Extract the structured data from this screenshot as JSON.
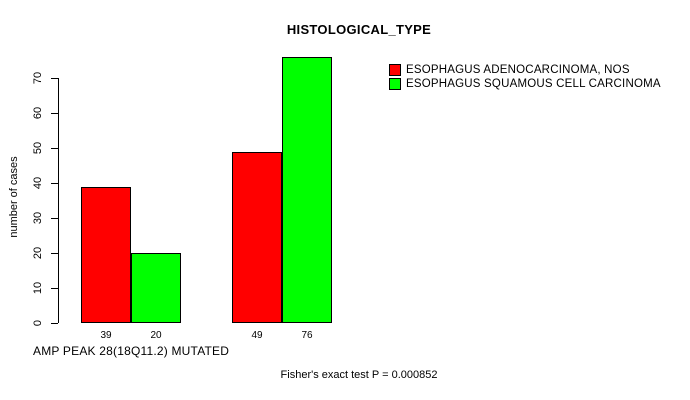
{
  "chart_data": {
    "type": "bar",
    "title": "HISTOLOGICAL_TYPE",
    "ylabel": "number of cases",
    "xlabel": "AMP PEAK 28(18Q11.2) MUTATED",
    "footer": "Fisher's exact test P = 0.000852",
    "grid": false,
    "legend_position": "right",
    "background_color": "#ffffff",
    "axis_color": "#000000",
    "ylim": [
      0,
      78
    ],
    "yticks": [
      0,
      10,
      20,
      30,
      40,
      50,
      60,
      70
    ],
    "series": [
      {
        "name": "ESOPHAGUS ADENOCARCINOMA, NOS",
        "color": "#ff0000",
        "values": [
          39,
          49
        ]
      },
      {
        "name": "ESOPHAGUS SQUAMOUS CELL CARCINOMA",
        "color": "#00ff00",
        "values": [
          20,
          76
        ]
      }
    ],
    "bar_value_labels": [
      [
        "39",
        "20"
      ],
      [
        "49",
        "76"
      ]
    ]
  }
}
